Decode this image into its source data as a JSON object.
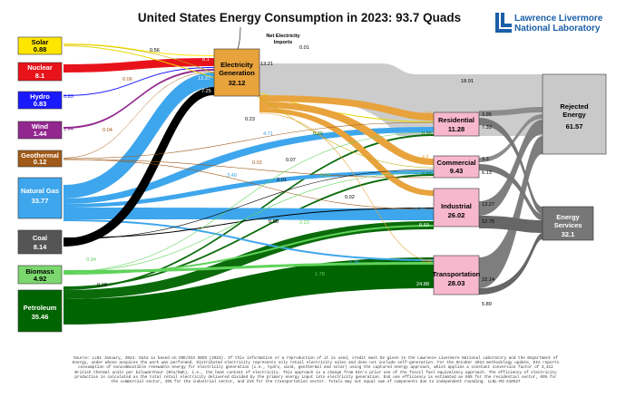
{
  "title": "United States Energy Consumption in 2023: 93.7 Quads",
  "logo": {
    "line1": "Lawrence Livermore",
    "line2": "National Laboratory"
  },
  "net_imports": {
    "label_1": "Net Electricity",
    "label_2": "Imports",
    "value": "0.01"
  },
  "sources": [
    {
      "name": "Solar",
      "value": "0.88",
      "color": "#ffe600"
    },
    {
      "name": "Nuclear",
      "value": "8.1",
      "color": "#e8131a"
    },
    {
      "name": "Hydro",
      "value": "0.83",
      "color": "#1a1aff"
    },
    {
      "name": "Wind",
      "value": "1.44",
      "color": "#92278f"
    },
    {
      "name": "Geothermal",
      "value": "0.12",
      "color": "#a05a18"
    },
    {
      "name": "Natural Gas",
      "value": "33.77",
      "color": "#3ea6ec"
    },
    {
      "name": "Coal",
      "value": "8.14",
      "color": "#000000"
    },
    {
      "name": "Biomass",
      "value": "4.92",
      "color": "#7cd86e"
    },
    {
      "name": "Petroleum",
      "value": "35.46",
      "color": "#006400"
    }
  ],
  "electricity": {
    "name_1": "Electricity",
    "name_2": "Generation",
    "value": "32.12",
    "color": "#e8a33d"
  },
  "sectors": [
    {
      "name": "Residential",
      "value": "11.28"
    },
    {
      "name": "Commercial",
      "value": "9.43"
    },
    {
      "name": "Industrial",
      "value": "26.02"
    },
    {
      "name": "Transportation",
      "value": "28.03"
    }
  ],
  "outputs": [
    {
      "name_1": "Rejected",
      "name_2": "Energy",
      "value": "61.57"
    },
    {
      "name_1": "Energy",
      "name_2": "Services",
      "value": "32.1"
    }
  ],
  "flow_labels": {
    "solar_elec": "0.56",
    "nuclear_elec": "8.1",
    "hydro_elec": "0.83",
    "wind_elec": "1.44",
    "geo_elec": "0.06",
    "geo_res": "0.04",
    "ng_elec": "13.37",
    "coal_elec": "7.25",
    "elec_rejected": "13.21",
    "rejected_total": "18.91",
    "solar_res": "0.23",
    "ng_res": "4.71",
    "ng_com": "3.48",
    "ng_ind": "10.86",
    "ng_trans": "1.35",
    "coal_ind": "0.88",
    "coal_com": "0.01",
    "solar_com": "0.07",
    "geo_com": "0.02",
    "biomass_res": "0.34",
    "biomass_ind": "2.23",
    "biomass_trans": "1.78",
    "pet_res": "0.18",
    "pet_com": "0.39",
    "pet_ind": "8.59",
    "pet_trans": "24.88",
    "pet_com2": "0.87",
    "pet_res2": "0.95",
    "bio_com": "0.18",
    "geo_ind": "0.02",
    "elec_res": "4.95",
    "elec_com": "4.6",
    "elec_ind": "3.44",
    "elec_trans": "0.02",
    "res_rej": "3.95",
    "res_serv": "7.33",
    "com_rej": "3.3",
    "com_serv": "6.13",
    "ind_rej": "13.27",
    "ind_serv": "12.75",
    "trans_rej": "22.14",
    "trans_serv": "5.89"
  },
  "footer": "Source: LLNL January, 2024. Data is based on DOE/EIA SEDS (2023). If this information or a reproduction of it is used, credit must be given to the Lawrence Livermore National Laboratory and the Department of Energy, under whose auspices the work was performed. Distributed electricity represents only retail electricity sales and does not include self-generation. For the October 2023 methodology update, EIA reports consumption of noncombustible renewable energy for electricity generation (i.e., hydro, wind, geothermal and solar) using the captured energy approach, which applies a constant conversion factor of 3,412 British thermal units per kilowatthour (Btu/kWh), i.e., the heat content of electricity. This approach is a change from EIA's prior use of the fossil fuel equivalency approach. The efficiency of electricity production is calculated as the total retail electricity delivered divided by the primary energy input into electricity generation. End use efficiency is estimated as 65% for the residential sector, 65% for the commercial sector, 49% for the industrial sector, and 21% for the transportation sector. Totals may not equal sum of components due to independent rounding. LLNL-MI-410527"
}
